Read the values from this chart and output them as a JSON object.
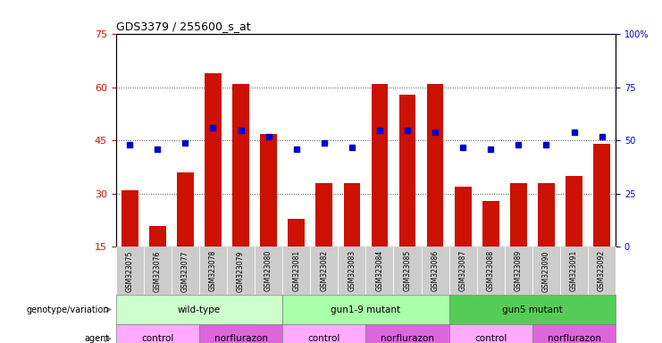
{
  "title": "GDS3379 / 255600_s_at",
  "samples": [
    "GSM323075",
    "GSM323076",
    "GSM323077",
    "GSM323078",
    "GSM323079",
    "GSM323080",
    "GSM323081",
    "GSM323082",
    "GSM323083",
    "GSM323084",
    "GSM323085",
    "GSM323086",
    "GSM323087",
    "GSM323088",
    "GSM323089",
    "GSM323090",
    "GSM323091",
    "GSM323092"
  ],
  "bar_values": [
    31,
    21,
    36,
    64,
    61,
    47,
    23,
    33,
    33,
    61,
    58,
    61,
    32,
    28,
    33,
    33,
    35,
    44
  ],
  "dot_values": [
    48,
    46,
    49,
    56,
    55,
    52,
    46,
    49,
    47,
    55,
    55,
    54,
    47,
    46,
    48,
    48,
    54,
    52
  ],
  "bar_color": "#cc1100",
  "dot_color": "#0000cc",
  "ylim_left": [
    15,
    75
  ],
  "yticks_left": [
    15,
    30,
    45,
    60,
    75
  ],
  "ylim_right": [
    0,
    100
  ],
  "yticks_right": [
    0,
    25,
    50,
    75,
    100
  ],
  "genotype_groups": [
    {
      "label": "wild-type",
      "start": 0,
      "end": 6,
      "color": "#ccffcc"
    },
    {
      "label": "gun1-9 mutant",
      "start": 6,
      "end": 12,
      "color": "#aaffaa"
    },
    {
      "label": "gun5 mutant",
      "start": 12,
      "end": 18,
      "color": "#55cc55"
    }
  ],
  "agent_groups": [
    {
      "label": "control",
      "start": 0,
      "end": 3,
      "color": "#ffaaff"
    },
    {
      "label": "norflurazon",
      "start": 3,
      "end": 6,
      "color": "#dd66dd"
    },
    {
      "label": "control",
      "start": 6,
      "end": 9,
      "color": "#ffaaff"
    },
    {
      "label": "norflurazon",
      "start": 9,
      "end": 12,
      "color": "#dd66dd"
    },
    {
      "label": "control",
      "start": 12,
      "end": 15,
      "color": "#ffaaff"
    },
    {
      "label": "norflurazon",
      "start": 15,
      "end": 18,
      "color": "#dd66dd"
    }
  ],
  "legend_count_color": "#cc1100",
  "legend_dot_color": "#0000cc",
  "grid_color": "#000000",
  "xlabel_color": "#cc1100",
  "ylabel_right_color": "#0000cc",
  "xtick_bg_color": "#cccccc",
  "right_pct_label": "100%"
}
